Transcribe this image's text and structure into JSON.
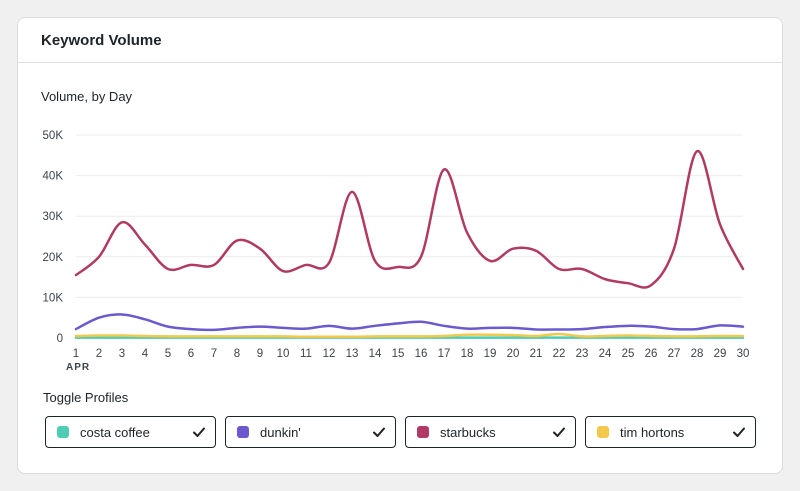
{
  "card": {
    "title": "Keyword Volume"
  },
  "toggle_section": {
    "title": "Toggle Profiles"
  },
  "profiles": [
    {
      "label": "costa coffee",
      "color": "#4ecdb4",
      "checked": true
    },
    {
      "label": "dunkin'",
      "color": "#6a5acd",
      "checked": true
    },
    {
      "label": "starbucks",
      "color": "#b03a64",
      "checked": true
    },
    {
      "label": "tim hortons",
      "color": "#f2c94c",
      "checked": true
    }
  ],
  "chart_data": {
    "type": "line",
    "title": "Volume, by Day",
    "x": [
      1,
      2,
      3,
      4,
      5,
      6,
      7,
      8,
      9,
      10,
      11,
      12,
      13,
      14,
      15,
      16,
      17,
      18,
      19,
      20,
      21,
      22,
      23,
      24,
      25,
      26,
      27,
      28,
      29,
      30
    ],
    "x_sublabel": "APR",
    "ylim": [
      0,
      50000
    ],
    "yticks": [
      0,
      10000,
      20000,
      30000,
      40000,
      50000
    ],
    "ytick_labels": [
      "0",
      "10K",
      "20K",
      "30K",
      "40K",
      "50K"
    ],
    "grid": true,
    "series": [
      {
        "name": "starbucks",
        "color": "#b03a64",
        "values": [
          15500,
          20000,
          28500,
          23000,
          17000,
          18000,
          18000,
          24000,
          22000,
          16500,
          18000,
          18500,
          36000,
          19000,
          17500,
          20000,
          41500,
          26000,
          19000,
          22000,
          21500,
          17000,
          17000,
          14500,
          13500,
          13000,
          22000,
          46000,
          28000,
          17000
        ]
      },
      {
        "name": "dunkin'",
        "color": "#6a5acd",
        "values": [
          2200,
          5000,
          5800,
          4600,
          2800,
          2200,
          2000,
          2500,
          2800,
          2500,
          2300,
          3000,
          2300,
          3000,
          3600,
          4000,
          3000,
          2300,
          2500,
          2500,
          2100,
          2100,
          2200,
          2700,
          3000,
          2800,
          2200,
          2200,
          3100,
          2800
        ]
      },
      {
        "name": "tim hortons",
        "color": "#f2c94c",
        "values": [
          500,
          600,
          600,
          500,
          400,
          400,
          400,
          400,
          400,
          400,
          300,
          300,
          300,
          400,
          400,
          400,
          500,
          800,
          800,
          700,
          500,
          1000,
          400,
          500,
          600,
          500,
          400,
          400,
          500,
          500
        ]
      },
      {
        "name": "costa coffee",
        "color": "#4ecdb4",
        "values": [
          100,
          100,
          100,
          100,
          100,
          100,
          100,
          100,
          100,
          100,
          100,
          100,
          100,
          100,
          100,
          100,
          100,
          100,
          100,
          100,
          100,
          100,
          100,
          100,
          100,
          100,
          100,
          100,
          100,
          100
        ]
      }
    ]
  }
}
